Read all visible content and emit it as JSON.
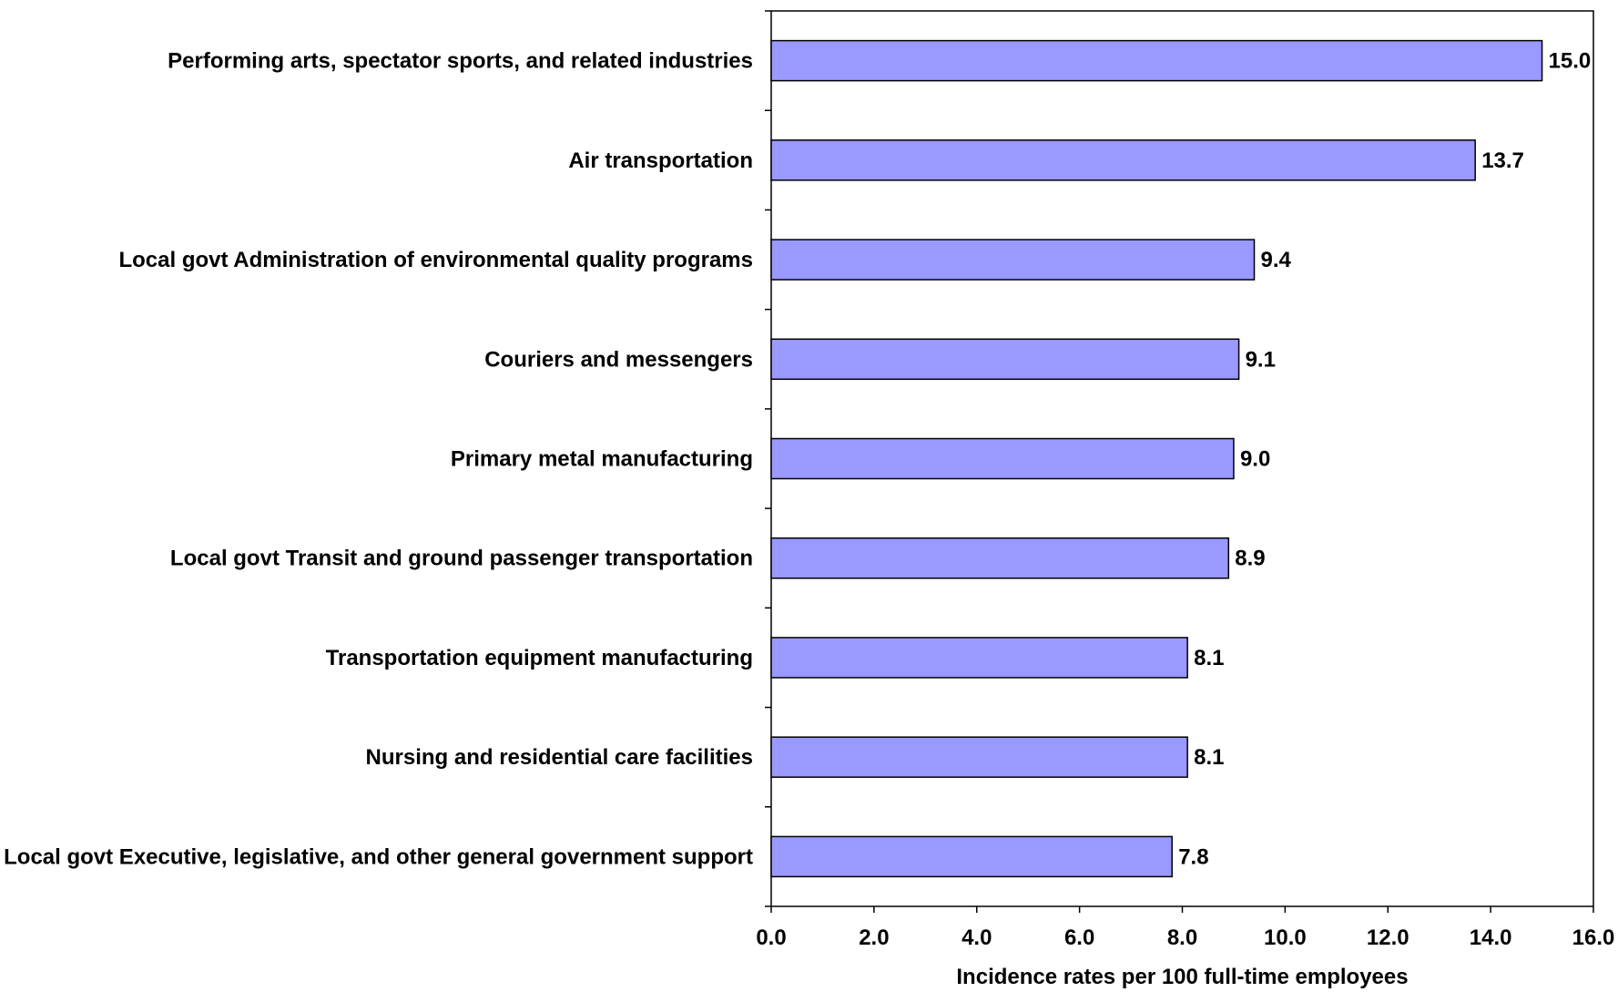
{
  "chart_data": {
    "type": "bar",
    "orientation": "horizontal",
    "categories": [
      "Performing arts, spectator sports, and related industries",
      "Air transportation",
      "Local govt Administration of environmental quality programs",
      "Couriers and messengers",
      "Primary metal manufacturing",
      "Local govt Transit and ground passenger transportation",
      "Transportation equipment manufacturing",
      "Nursing and residential care facilities",
      "Local govt Executive, legislative, and other general government support"
    ],
    "values": [
      15.0,
      13.7,
      9.4,
      9.1,
      9.0,
      8.9,
      8.1,
      8.1,
      7.8
    ],
    "value_labels": [
      "15.0",
      "13.7",
      "9.4",
      "9.1",
      "9.0",
      "8.9",
      "8.1",
      "8.1",
      "7.8"
    ],
    "xlabel": "Incidence rates per 100 full-time employees",
    "ylabel": "",
    "title": "",
    "xlim": [
      0,
      16
    ],
    "xticks": [
      "0.0",
      "2.0",
      "4.0",
      "6.0",
      "8.0",
      "10.0",
      "12.0",
      "14.0",
      "16.0"
    ],
    "bar_color": "#9999FF",
    "bar_outline": "#000000",
    "grid": false,
    "legend": "none"
  }
}
